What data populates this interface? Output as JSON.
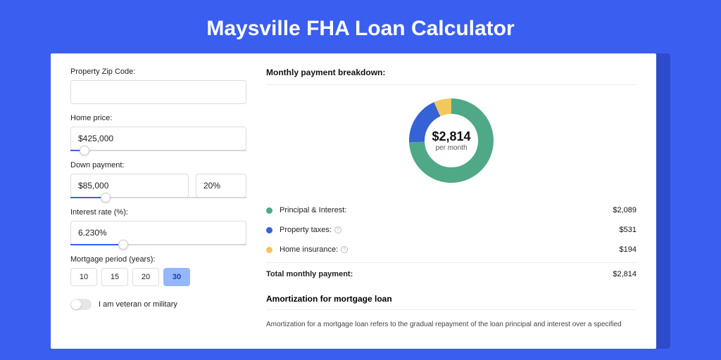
{
  "title": "Maysville FHA Loan Calculator",
  "form": {
    "zip_label": "Property Zip Code:",
    "zip_value": "",
    "price_label": "Home price:",
    "price_value": "$425,000",
    "price_slider_pct": 8,
    "down_label": "Down payment:",
    "down_value": "$85,000",
    "down_pct_value": "20%",
    "down_slider_pct": 20,
    "rate_label": "Interest rate (%):",
    "rate_value": "6.230%",
    "rate_slider_pct": 30,
    "period_label": "Mortgage period (years):",
    "periods": [
      "10",
      "15",
      "20",
      "30"
    ],
    "period_active": "30",
    "veteran_label": "I am veteran or military"
  },
  "breakdown": {
    "title": "Monthly payment breakdown:",
    "donut": {
      "amount": "$2,814",
      "sub": "per month",
      "slices": [
        {
          "color": "#4fa986",
          "pct": 74.2
        },
        {
          "color": "#3562d4",
          "pct": 18.9
        },
        {
          "color": "#f1c75f",
          "pct": 6.9
        }
      ],
      "thickness": 22
    },
    "items": [
      {
        "color": "#4fa986",
        "label": "Principal & Interest:",
        "value": "$2,089",
        "info": false
      },
      {
        "color": "#3562d4",
        "label": "Property taxes:",
        "value": "$531",
        "info": true
      },
      {
        "color": "#f1c75f",
        "label": "Home insurance:",
        "value": "$194",
        "info": true
      }
    ],
    "total_label": "Total monthly payment:",
    "total_value": "$2,814"
  },
  "amort": {
    "title": "Amortization for mortgage loan",
    "text": "Amortization for a mortgage loan refers to the gradual repayment of the loan principal and interest over a specified"
  }
}
